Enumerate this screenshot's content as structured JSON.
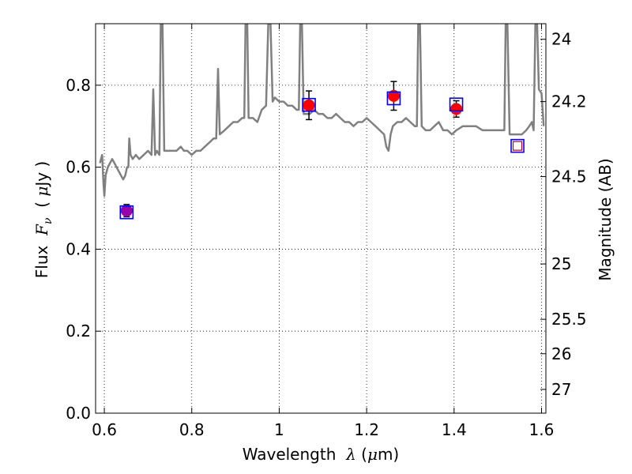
{
  "chart_data": {
    "type": "scatter",
    "xlabel_prefix": "Wavelength  ",
    "xlabel_symbol": "λ",
    "xlabel_unit_open": " (",
    "xlabel_unit_mu": "μ",
    "xlabel_unit_rest": "m)",
    "ylabel_prefix": "Flux  ",
    "ylabel_symbol": "F",
    "ylabel_sub": "ν",
    "ylabel_unit_open": "  ( ",
    "ylabel_unit_mu": "μ",
    "ylabel_unit_rest": "Jy )",
    "y2label": "Magnitude (AB)",
    "xlim": [
      0.58,
      1.61
    ],
    "ylim": [
      0.0,
      0.95
    ],
    "x_ticks": [
      0.6,
      0.8,
      1.0,
      1.2,
      1.4,
      1.6
    ],
    "x_tick_labels": [
      "0.6",
      "0.8",
      "1",
      "1.2",
      "1.4",
      "1.6"
    ],
    "y_ticks": [
      0.0,
      0.2,
      0.4,
      0.6,
      0.8
    ],
    "y_tick_labels": [
      "0.0",
      "0.2",
      "0.4",
      "0.6",
      "0.8"
    ],
    "y2_ticks": [
      {
        "label": "24",
        "flux": 0.912
      },
      {
        "label": "24.2",
        "flux": 0.76
      },
      {
        "label": "24.5",
        "flux": 0.577
      },
      {
        "label": "25",
        "flux": 0.364
      },
      {
        "label": "25.5",
        "flux": 0.229
      },
      {
        "label": "26",
        "flux": 0.145
      },
      {
        "label": "27",
        "flux": 0.058
      }
    ],
    "grid": true,
    "colors": {
      "model": "#808080",
      "observed": "#ff0000",
      "observed_first": "#9900aa",
      "model_box": "#0000ff",
      "model_box_last": "#cc0000",
      "errorbar": "#000000"
    },
    "model_spectrum": [
      [
        0.59,
        0.61
      ],
      [
        0.595,
        0.63
      ],
      [
        0.598,
        0.56
      ],
      [
        0.6,
        0.53
      ],
      [
        0.603,
        0.58
      ],
      [
        0.608,
        0.6
      ],
      [
        0.613,
        0.61
      ],
      [
        0.618,
        0.62
      ],
      [
        0.623,
        0.61
      ],
      [
        0.628,
        0.6
      ],
      [
        0.633,
        0.59
      ],
      [
        0.638,
        0.58
      ],
      [
        0.643,
        0.57
      ],
      [
        0.648,
        0.58
      ],
      [
        0.652,
        0.6
      ],
      [
        0.655,
        0.6
      ],
      [
        0.657,
        0.67
      ],
      [
        0.66,
        0.63
      ],
      [
        0.665,
        0.62
      ],
      [
        0.672,
        0.63
      ],
      [
        0.68,
        0.62
      ],
      [
        0.69,
        0.63
      ],
      [
        0.7,
        0.64
      ],
      [
        0.708,
        0.63
      ],
      [
        0.712,
        0.79
      ],
      [
        0.716,
        0.63
      ],
      [
        0.72,
        0.64
      ],
      [
        0.726,
        0.63
      ],
      [
        0.729,
        0.95
      ],
      [
        0.733,
        0.95
      ],
      [
        0.737,
        0.64
      ],
      [
        0.745,
        0.64
      ],
      [
        0.755,
        0.64
      ],
      [
        0.765,
        0.64
      ],
      [
        0.775,
        0.65
      ],
      [
        0.782,
        0.64
      ],
      [
        0.79,
        0.64
      ],
      [
        0.8,
        0.63
      ],
      [
        0.81,
        0.64
      ],
      [
        0.82,
        0.64
      ],
      [
        0.83,
        0.65
      ],
      [
        0.84,
        0.66
      ],
      [
        0.85,
        0.67
      ],
      [
        0.856,
        0.67
      ],
      [
        0.86,
        0.84
      ],
      [
        0.864,
        0.68
      ],
      [
        0.875,
        0.69
      ],
      [
        0.885,
        0.7
      ],
      [
        0.895,
        0.71
      ],
      [
        0.905,
        0.71
      ],
      [
        0.915,
        0.72
      ],
      [
        0.92,
        0.72
      ],
      [
        0.923,
        0.95
      ],
      [
        0.927,
        0.95
      ],
      [
        0.93,
        0.72
      ],
      [
        0.94,
        0.72
      ],
      [
        0.95,
        0.71
      ],
      [
        0.96,
        0.74
      ],
      [
        0.97,
        0.75
      ],
      [
        0.975,
        0.95
      ],
      [
        0.98,
        0.95
      ],
      [
        0.985,
        0.76
      ],
      [
        0.99,
        0.77
      ],
      [
        1.0,
        0.76
      ],
      [
        1.01,
        0.76
      ],
      [
        1.02,
        0.75
      ],
      [
        1.03,
        0.75
      ],
      [
        1.04,
        0.74
      ],
      [
        1.045,
        0.74
      ],
      [
        1.048,
        0.95
      ],
      [
        1.052,
        0.95
      ],
      [
        1.056,
        0.73
      ],
      [
        1.06,
        0.73
      ],
      [
        1.07,
        0.73
      ],
      [
        1.08,
        0.74
      ],
      [
        1.09,
        0.73
      ],
      [
        1.1,
        0.73
      ],
      [
        1.11,
        0.72
      ],
      [
        1.12,
        0.72
      ],
      [
        1.13,
        0.73
      ],
      [
        1.14,
        0.72
      ],
      [
        1.15,
        0.71
      ],
      [
        1.16,
        0.71
      ],
      [
        1.17,
        0.7
      ],
      [
        1.18,
        0.71
      ],
      [
        1.19,
        0.71
      ],
      [
        1.2,
        0.72
      ],
      [
        1.21,
        0.71
      ],
      [
        1.22,
        0.7
      ],
      [
        1.23,
        0.69
      ],
      [
        1.24,
        0.68
      ],
      [
        1.245,
        0.65
      ],
      [
        1.25,
        0.64
      ],
      [
        1.255,
        0.68
      ],
      [
        1.26,
        0.7
      ],
      [
        1.27,
        0.71
      ],
      [
        1.28,
        0.71
      ],
      [
        1.29,
        0.72
      ],
      [
        1.3,
        0.71
      ],
      [
        1.31,
        0.7
      ],
      [
        1.315,
        0.7
      ],
      [
        1.318,
        0.95
      ],
      [
        1.322,
        0.95
      ],
      [
        1.326,
        0.7
      ],
      [
        1.335,
        0.69
      ],
      [
        1.345,
        0.69
      ],
      [
        1.355,
        0.7
      ],
      [
        1.365,
        0.71
      ],
      [
        1.375,
        0.69
      ],
      [
        1.385,
        0.69
      ],
      [
        1.395,
        0.68
      ],
      [
        1.405,
        0.69
      ],
      [
        1.42,
        0.7
      ],
      [
        1.435,
        0.7
      ],
      [
        1.45,
        0.7
      ],
      [
        1.465,
        0.69
      ],
      [
        1.48,
        0.69
      ],
      [
        1.495,
        0.69
      ],
      [
        1.51,
        0.69
      ],
      [
        1.515,
        0.69
      ],
      [
        1.518,
        0.95
      ],
      [
        1.522,
        0.95
      ],
      [
        1.527,
        0.68
      ],
      [
        1.54,
        0.68
      ],
      [
        1.555,
        0.68
      ],
      [
        1.565,
        0.69
      ],
      [
        1.572,
        0.7
      ],
      [
        1.578,
        0.71
      ],
      [
        1.582,
        0.69
      ],
      [
        1.586,
        0.95
      ],
      [
        1.59,
        0.95
      ],
      [
        1.594,
        0.79
      ],
      [
        1.6,
        0.78
      ],
      [
        1.605,
        0.7
      ]
    ],
    "observed": [
      {
        "x": 0.651,
        "y": 0.494,
        "yerr": 0.015,
        "color": "observed_first"
      },
      {
        "x": 1.068,
        "y": 0.751,
        "yerr": 0.035,
        "color": "observed"
      },
      {
        "x": 1.262,
        "y": 0.774,
        "yerr": 0.035,
        "color": "observed"
      },
      {
        "x": 1.405,
        "y": 0.742,
        "yerr": 0.02,
        "color": "observed"
      }
    ],
    "model_photometry": [
      {
        "x": 0.651,
        "y": 0.49,
        "color": "model_box"
      },
      {
        "x": 1.068,
        "y": 0.752,
        "color": "model_box"
      },
      {
        "x": 1.262,
        "y": 0.768,
        "color": "model_box"
      },
      {
        "x": 1.405,
        "y": 0.753,
        "color": "model_box"
      },
      {
        "x": 1.545,
        "y": 0.652,
        "color": "model_box_last"
      }
    ]
  }
}
